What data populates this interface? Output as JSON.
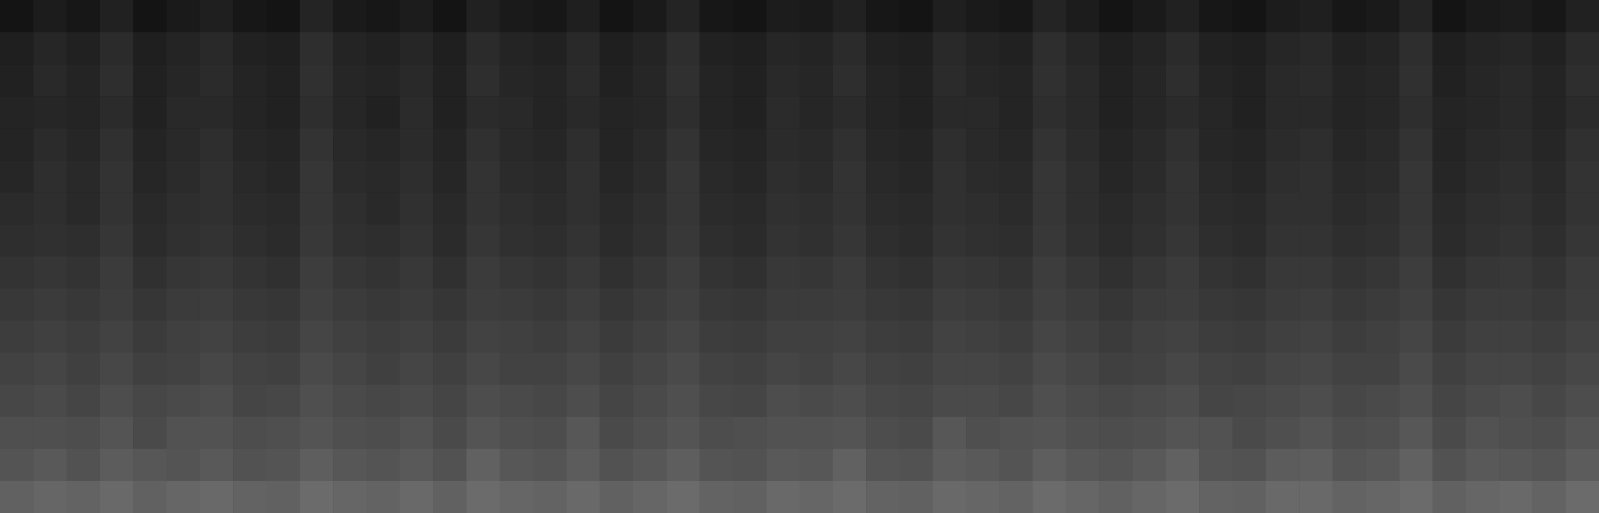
{
  "chart_data": {
    "type": "heatmap",
    "tick_labels": false,
    "color_range": [
      0,
      100
    ],
    "cells": [
      [
        8,
        11,
        9,
        13,
        8,
        10,
        12,
        9,
        8,
        14,
        10,
        9,
        11,
        8,
        13,
        10,
        9,
        12,
        8,
        10,
        14,
        9,
        8,
        11,
        10,
        13,
        9,
        8,
        12,
        10,
        9,
        14,
        11,
        8,
        10,
        13,
        9,
        8,
        11,
        12,
        9,
        10,
        14,
        8,
        10,
        11,
        9,
        13
      ],
      [
        12,
        15,
        13,
        17,
        12,
        14,
        16,
        13,
        12,
        18,
        14,
        13,
        15,
        12,
        17,
        14,
        13,
        16,
        12,
        14,
        18,
        13,
        12,
        15,
        14,
        17,
        13,
        12,
        16,
        14,
        13,
        18,
        15,
        12,
        14,
        17,
        13,
        12,
        15,
        16,
        13,
        14,
        18,
        12,
        14,
        15,
        13,
        17
      ],
      [
        13,
        16,
        14,
        18,
        13,
        15,
        17,
        14,
        13,
        19,
        15,
        14,
        16,
        13,
        18,
        15,
        14,
        17,
        13,
        15,
        19,
        14,
        13,
        16,
        15,
        18,
        14,
        13,
        17,
        15,
        14,
        19,
        16,
        13,
        15,
        18,
        14,
        13,
        16,
        17,
        14,
        15,
        19,
        13,
        15,
        16,
        14,
        18
      ],
      [
        14,
        15,
        14,
        17,
        13,
        16,
        16,
        14,
        13,
        18,
        15,
        13,
        17,
        13,
        17,
        16,
        14,
        16,
        14,
        15,
        18,
        14,
        13,
        17,
        15,
        17,
        14,
        13,
        16,
        16,
        14,
        18,
        16,
        13,
        15,
        17,
        15,
        13,
        16,
        16,
        14,
        15,
        18,
        14,
        15,
        16,
        14,
        17
      ],
      [
        14,
        17,
        15,
        19,
        14,
        16,
        18,
        15,
        14,
        20,
        16,
        15,
        17,
        14,
        19,
        16,
        15,
        18,
        14,
        16,
        20,
        15,
        14,
        17,
        16,
        19,
        15,
        14,
        18,
        16,
        15,
        20,
        17,
        14,
        16,
        19,
        15,
        14,
        17,
        18,
        15,
        16,
        20,
        14,
        16,
        17,
        15,
        19
      ],
      [
        15,
        18,
        16,
        20,
        15,
        17,
        19,
        16,
        15,
        21,
        17,
        16,
        18,
        15,
        20,
        17,
        16,
        19,
        15,
        17,
        21,
        16,
        15,
        18,
        17,
        20,
        16,
        15,
        19,
        17,
        16,
        21,
        18,
        15,
        17,
        20,
        16,
        15,
        18,
        19,
        16,
        17,
        21,
        15,
        17,
        18,
        16,
        20
      ],
      [
        17,
        18,
        16,
        20,
        16,
        18,
        19,
        17,
        16,
        21,
        18,
        16,
        19,
        16,
        20,
        18,
        17,
        19,
        16,
        18,
        21,
        17,
        16,
        19,
        18,
        20,
        17,
        16,
        19,
        18,
        17,
        21,
        18,
        16,
        18,
        20,
        17,
        16,
        19,
        19,
        17,
        18,
        21,
        16,
        18,
        19,
        17,
        20
      ],
      [
        18,
        19,
        18,
        21,
        17,
        19,
        20,
        18,
        17,
        22,
        19,
        18,
        20,
        17,
        21,
        19,
        18,
        20,
        17,
        19,
        22,
        18,
        17,
        20,
        19,
        21,
        18,
        17,
        20,
        19,
        18,
        22,
        19,
        17,
        19,
        21,
        18,
        17,
        20,
        20,
        18,
        19,
        22,
        17,
        19,
        20,
        18,
        21
      ],
      [
        20,
        21,
        20,
        23,
        19,
        21,
        22,
        20,
        19,
        24,
        21,
        20,
        22,
        19,
        23,
        21,
        20,
        22,
        19,
        21,
        24,
        20,
        19,
        22,
        21,
        23,
        20,
        19,
        22,
        21,
        20,
        24,
        21,
        19,
        21,
        23,
        20,
        19,
        22,
        22,
        20,
        21,
        24,
        19,
        21,
        22,
        20,
        23
      ],
      [
        22,
        23,
        22,
        24,
        21,
        23,
        24,
        22,
        21,
        25,
        23,
        22,
        23,
        21,
        24,
        23,
        22,
        24,
        21,
        23,
        25,
        22,
        21,
        23,
        23,
        24,
        22,
        21,
        24,
        23,
        22,
        25,
        23,
        21,
        23,
        24,
        22,
        21,
        23,
        24,
        22,
        23,
        25,
        21,
        23,
        23,
        22,
        24
      ],
      [
        24,
        25,
        24,
        26,
        23,
        25,
        26,
        24,
        23,
        27,
        25,
        24,
        25,
        23,
        26,
        25,
        24,
        26,
        23,
        25,
        27,
        24,
        23,
        25,
        25,
        26,
        24,
        23,
        26,
        25,
        24,
        27,
        25,
        23,
        25,
        26,
        24,
        23,
        25,
        26,
        24,
        25,
        27,
        23,
        25,
        25,
        24,
        26
      ],
      [
        26,
        27,
        25,
        28,
        25,
        26,
        28,
        26,
        25,
        29,
        27,
        25,
        27,
        25,
        28,
        26,
        26,
        28,
        25,
        27,
        29,
        26,
        25,
        27,
        26,
        28,
        26,
        25,
        27,
        27,
        26,
        29,
        27,
        25,
        26,
        28,
        26,
        25,
        27,
        28,
        26,
        26,
        29,
        25,
        27,
        27,
        26,
        28
      ],
      [
        28,
        29,
        27,
        30,
        28,
        29,
        30,
        27,
        28,
        31,
        29,
        28,
        29,
        27,
        30,
        29,
        28,
        30,
        27,
        29,
        31,
        28,
        27,
        30,
        29,
        30,
        28,
        27,
        29,
        29,
        28,
        31,
        29,
        28,
        29,
        30,
        27,
        28,
        29,
        30,
        28,
        29,
        31,
        27,
        29,
        30,
        28,
        30
      ],
      [
        31,
        31,
        30,
        33,
        29,
        32,
        32,
        30,
        31,
        33,
        31,
        30,
        32,
        29,
        33,
        31,
        30,
        34,
        29,
        31,
        33,
        30,
        31,
        32,
        32,
        33,
        30,
        29,
        34,
        31,
        32,
        33,
        31,
        30,
        31,
        33,
        32,
        29,
        31,
        33,
        30,
        31,
        34,
        29,
        32,
        31,
        30,
        33
      ],
      [
        33,
        35,
        32,
        36,
        34,
        33,
        35,
        32,
        33,
        37,
        34,
        33,
        35,
        32,
        38,
        34,
        33,
        36,
        32,
        34,
        37,
        33,
        32,
        35,
        34,
        38,
        33,
        32,
        36,
        35,
        33,
        37,
        34,
        33,
        35,
        38,
        33,
        32,
        36,
        37,
        33,
        34,
        38,
        32,
        35,
        34,
        33,
        36
      ],
      [
        38,
        40,
        39,
        41,
        38,
        40,
        41,
        39,
        38,
        42,
        40,
        39,
        41,
        38,
        42,
        40,
        39,
        41,
        38,
        40,
        42,
        39,
        38,
        41,
        40,
        42,
        39,
        38,
        41,
        40,
        39,
        42,
        40,
        38,
        40,
        42,
        39,
        38,
        41,
        41,
        39,
        40,
        42,
        38,
        40,
        41,
        39,
        42
      ]
    ]
  }
}
